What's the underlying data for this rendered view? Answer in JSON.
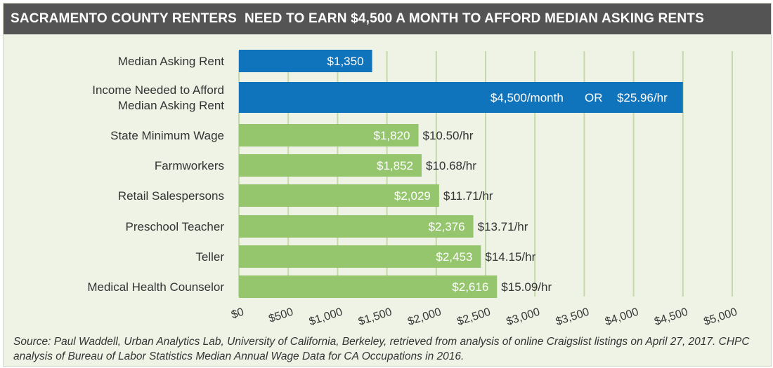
{
  "title": "SACRAMENTO COUNTY RENTERS  NEED TO EARN $4,500 A MONTH TO AFFORD MEDIAN ASKING RENTS",
  "source": "Source: Paul Waddell, Urban Analytics Lab, University of California, Berkeley, retrieved from analysis of online Craigslist listings on April 27, 2017. CHPC analysis of Bureau of Labor Statistics Median Annual Wage Data for CA Occupations in 2016.",
  "colors": {
    "blue": "#0f74bc",
    "green": "#95c66e",
    "grid": "#c6d9a8",
    "title_bg": "#545454",
    "panel_bg": "#eef3e6"
  },
  "chart_data": {
    "type": "bar",
    "orientation": "horizontal",
    "title": "SACRAMENTO COUNTY RENTERS  NEED TO EARN $4,500 A MONTH TO AFFORD MEDIAN ASKING RENTS",
    "xlim": [
      0,
      5000
    ],
    "ticks": [
      "$0",
      "$500",
      "$1,000",
      "$1,500",
      "$2,000",
      "$2,500",
      "$3,000",
      "$3,500",
      "$4,000",
      "$4,500",
      "$5,000"
    ],
    "grid": true,
    "bars": [
      {
        "category": [
          "Median Asking Rent"
        ],
        "value": 1350,
        "label": "$1,350",
        "color": "blue"
      },
      {
        "category": [
          "Income Needed to Afford",
          "Median Asking Rent"
        ],
        "value": 4500,
        "label": "$4,500/month",
        "separator": "OR",
        "extra_label": "$25.96/hr",
        "color": "blue"
      },
      {
        "category": [
          "State Minimum Wage"
        ],
        "value": 1820,
        "label": "$1,820",
        "wage": "$10.50/hr",
        "color": "green"
      },
      {
        "category": [
          "Farmworkers"
        ],
        "value": 1852,
        "label": "$1,852",
        "wage": "$10.68/hr",
        "color": "green"
      },
      {
        "category": [
          "Retail Salespersons"
        ],
        "value": 2029,
        "label": "$2,029",
        "wage": "$11.71/hr",
        "color": "green"
      },
      {
        "category": [
          "Preschool Teacher"
        ],
        "value": 2376,
        "label": "$2,376",
        "wage": "$13.71/hr",
        "color": "green"
      },
      {
        "category": [
          "Teller"
        ],
        "value": 2453,
        "label": "$2,453",
        "wage": "$14.15/hr",
        "color": "green"
      },
      {
        "category": [
          "Medical Health Counselor"
        ],
        "value": 2616,
        "label": "$2,616",
        "wage": "$15.09/hr",
        "color": "green"
      }
    ]
  }
}
